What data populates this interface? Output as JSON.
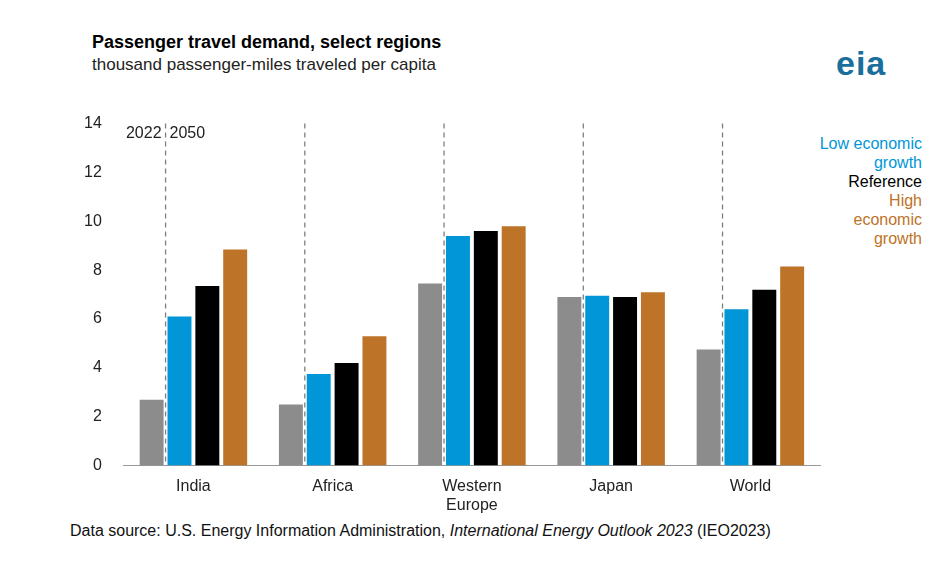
{
  "chart_data": {
    "type": "bar",
    "title": "Passenger travel demand, select regions",
    "subtitle": "thousand passenger-miles traveled per capita",
    "logo": "eia",
    "annotations": [
      "2050"
    ],
    "source": [
      "Data source: U.S. Energy Information Administration, ",
      "International Energy Outlook 2023",
      " (IEO2023)"
    ],
    "categories": [
      "India",
      "Africa",
      "Western Europe",
      "Japan",
      "World"
    ],
    "series": [
      {
        "name": "2022",
        "color": "#8c8c8c",
        "values": [
          2.7,
          2.5,
          7.45,
          6.9,
          4.75
        ]
      },
      {
        "name": "Low economic growth",
        "color": "#0096d7",
        "values": [
          6.1,
          3.75,
          9.4,
          6.95,
          6.4
        ]
      },
      {
        "name": "Reference",
        "color": "#000000",
        "values": [
          7.35,
          4.2,
          9.6,
          6.9,
          7.2
        ]
      },
      {
        "name": "High economic growth",
        "color": "#bd7328",
        "values": [
          8.85,
          5.3,
          9.8,
          7.1,
          8.15
        ]
      }
    ],
    "ylim": [
      0,
      14
    ],
    "yticks": [
      0,
      2,
      4,
      6,
      8,
      10,
      12,
      14
    ],
    "grid": false
  }
}
